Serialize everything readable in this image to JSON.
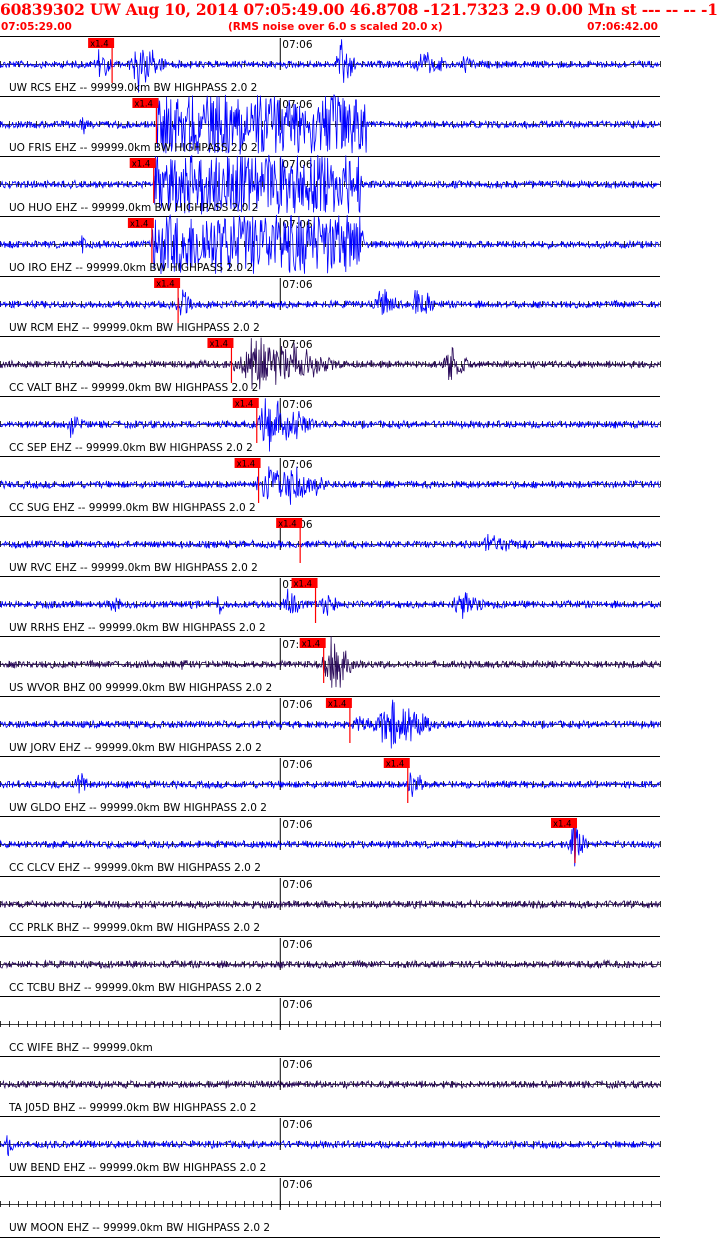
{
  "header": {
    "title": "60839302 UW Aug 10, 2014 07:05:49.00   46.8708 -121.7323  2.9 0.00 Mn st --- -- --  -1",
    "start_time": "07:05:29.00",
    "noise_note": "(RMS noise over 6.0 s scaled 20.0 x)",
    "end_time": "07:06:42.00"
  },
  "pick_label": "x1.4",
  "minute_label": "07:06",
  "chart_data": {
    "type": "line",
    "title": "60839302 UW Aug 10, 2014 07:05:49.00   46.8708 -121.7323  2.9 0.00 Mn st --- -- --  -1",
    "x_range": [
      "07:05:29.00",
      "07:06:42.00"
    ],
    "x_tick_interval_s": 1,
    "minute_mark": "07:06",
    "colors": {
      "waveform_blue": "#0000ff",
      "waveform_dark": "#2a0a5a",
      "pick": "#ff0000",
      "header": "#ff0000"
    },
    "traces": [
      {
        "label": "UW RCS EHZ -- 99999.0km BW  HIGHPASS  2.0  2",
        "pick_s": 12.4,
        "color": "blue",
        "events": [
          {
            "t": 10.6,
            "amp": 0.6,
            "dur": 2
          },
          {
            "t": 14.5,
            "amp": 0.9,
            "dur": 4
          },
          {
            "t": 37.4,
            "amp": 1.0,
            "dur": 2
          },
          {
            "t": 46.0,
            "amp": 0.45,
            "dur": 4
          },
          {
            "t": 51.0,
            "amp": 0.3,
            "dur": 2
          }
        ]
      },
      {
        "label": "UO FRIS EHZ -- 99999.0km BW  HIGHPASS  2.0  2",
        "pick_s": 17.3,
        "color": "blue",
        "clipped": [
          17.3,
          40.5
        ],
        "events": [
          {
            "t": 9.0,
            "amp": 0.5,
            "dur": 0.5
          }
        ]
      },
      {
        "label": "UO HUO EHZ -- 99999.0km BW  HIGHPASS  2.0  2",
        "pick_s": 17.0,
        "color": "blue",
        "clipped": [
          17.0,
          40.0
        ],
        "events": []
      },
      {
        "label": "UO IRO EHZ -- 99999.0km BW  HIGHPASS  2.0  2",
        "pick_s": 16.8,
        "color": "blue",
        "clipped": [
          16.8,
          40.2
        ],
        "events": [
          {
            "t": 9.0,
            "amp": 0.5,
            "dur": 0.5
          }
        ]
      },
      {
        "label": "UW RCM EHZ -- 99999.0km BW  HIGHPASS  2.0  2",
        "pick_s": 19.7,
        "color": "blue",
        "events": [
          {
            "t": 19.7,
            "amp": 0.6,
            "dur": 2
          },
          {
            "t": 41.5,
            "amp": 0.5,
            "dur": 3
          },
          {
            "t": 45.5,
            "amp": 0.7,
            "dur": 3
          }
        ]
      },
      {
        "label": "CC VALT BHZ -- 99999.0km BW  HIGHPASS  2.0  2",
        "pick_s": 25.6,
        "color": "dark",
        "events": [
          {
            "t": 26.0,
            "amp": 1.0,
            "dur": 12
          },
          {
            "t": 49.0,
            "amp": 0.7,
            "dur": 3
          }
        ]
      },
      {
        "label": "CC SEP EHZ -- 99999.0km BW  HIGHPASS  2.0  2",
        "pick_s": 28.4,
        "color": "blue",
        "events": [
          {
            "t": 7.5,
            "amp": 0.35,
            "dur": 2
          },
          {
            "t": 28.4,
            "amp": 1.0,
            "dur": 7
          }
        ]
      },
      {
        "label": "CC SUG EHZ -- 99999.0km BW  HIGHPASS  2.0  2",
        "pick_s": 28.6,
        "color": "blue",
        "events": [
          {
            "t": 28.6,
            "amp": 1.0,
            "dur": 8
          }
        ]
      },
      {
        "label": "UW RVC EHZ -- 99999.0km BW  HIGHPASS  2.0  2",
        "pick_s": 33.2,
        "color": "blue",
        "events": [
          {
            "t": 53.0,
            "amp": 0.25,
            "dur": 6
          }
        ]
      },
      {
        "label": "UW RRHS EHZ -- 99999.0km BW  HIGHPASS  2.0  2",
        "pick_s": 34.9,
        "color": "blue",
        "events": [
          {
            "t": 12.5,
            "amp": 0.4,
            "dur": 1
          },
          {
            "t": 24.0,
            "amp": 0.35,
            "dur": 1
          },
          {
            "t": 31.5,
            "amp": 0.45,
            "dur": 2
          },
          {
            "t": 35.5,
            "amp": 0.5,
            "dur": 2
          },
          {
            "t": 50.0,
            "amp": 0.5,
            "dur": 4
          }
        ]
      },
      {
        "label": "US WVOR BHZ 00 99999.0km BW  HIGHPASS  2.0  2",
        "pick_s": 35.8,
        "color": "dark",
        "events": [
          {
            "t": 35.8,
            "amp": 1.0,
            "dur": 4
          },
          {
            "t": 20.0,
            "amp": 0.3,
            "dur": 1
          }
        ]
      },
      {
        "label": "UW JORV EHZ -- 99999.0km BW  HIGHPASS  2.0  2",
        "pick_s": 38.7,
        "color": "blue",
        "events": [
          {
            "t": 39.2,
            "amp": 0.6,
            "dur": 2
          },
          {
            "t": 41.5,
            "amp": 1.0,
            "dur": 7
          }
        ]
      },
      {
        "label": "UW GLDO EHZ -- 99999.0km BW  HIGHPASS  2.0  2",
        "pick_s": 45.1,
        "color": "blue",
        "events": [
          {
            "t": 8.5,
            "amp": 0.5,
            "dur": 1.5
          },
          {
            "t": 45.0,
            "amp": 0.8,
            "dur": 2
          }
        ]
      },
      {
        "label": "CC CLCV EHZ -- 99999.0km BW  HIGHPASS  2.0  2",
        "pick_s": 63.6,
        "color": "blue",
        "events": [
          {
            "t": 63.0,
            "amp": 0.8,
            "dur": 2
          }
        ]
      },
      {
        "label": "CC PRLK BHZ -- 99999.0km BW  HIGHPASS  2.0  2",
        "color": "dark",
        "events": []
      },
      {
        "label": "CC TCBU BHZ -- 99999.0km BW  HIGHPASS  2.0  2",
        "color": "dark",
        "events": []
      },
      {
        "label": "CC WIFE BHZ -- 99999.0km",
        "color": "none",
        "events": []
      },
      {
        "label": "TA J05D BHZ -- 99999.0km BW  HIGHPASS  2.0  2",
        "color": "dark",
        "events": []
      },
      {
        "label": "UW BEND EHZ -- 99999.0km BW  HIGHPASS  2.0  2",
        "color": "blue",
        "events": [
          {
            "t": 0.6,
            "amp": 0.4,
            "dur": 1
          }
        ]
      },
      {
        "label": "UW MOON EHZ -- 99999.0km BW  HIGHPASS  2.0  2",
        "color": "none",
        "events": []
      }
    ]
  }
}
